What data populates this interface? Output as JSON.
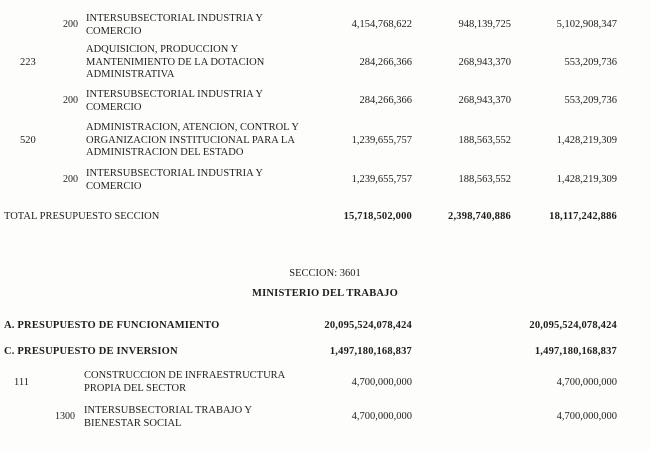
{
  "rows": [
    {
      "code": "",
      "sub": "200",
      "desc": [
        "INTERSUBSECTORIAL INDUSTRIA Y",
        "COMERCIO"
      ],
      "v1": "4,154,768,622",
      "v2": "948,139,725",
      "v3": "5,102,908,347"
    },
    {
      "code": "223",
      "sub": "",
      "desc": [
        "ADQUISICION, PRODUCCION Y",
        "MANTENIMIENTO DE LA DOTACION",
        "ADMINISTRATIVA"
      ],
      "v1": "284,266,366",
      "v2": "268,943,370",
      "v3": "553,209,736"
    },
    {
      "code": "",
      "sub": "200",
      "desc": [
        "INTERSUBSECTORIAL INDUSTRIA Y",
        "COMERCIO"
      ],
      "v1": "284,266,366",
      "v2": "268,943,370",
      "v3": "553,209,736"
    },
    {
      "code": "520",
      "sub": "",
      "desc": [
        "ADMINISTRACION, ATENCION, CONTROL Y",
        "ORGANIZACION INSTITUCIONAL PARA LA",
        "ADMINISTRACION DEL ESTADO"
      ],
      "v1": "1,239,655,757",
      "v2": "188,563,552",
      "v3": "1,428,219,309"
    },
    {
      "code": "",
      "sub": "200",
      "desc": [
        "INTERSUBSECTORIAL INDUSTRIA Y",
        "COMERCIO"
      ],
      "v1": "1,239,655,757",
      "v2": "188,563,552",
      "v3": "1,428,219,309"
    }
  ],
  "total": {
    "label": "TOTAL PRESUPUESTO SECCION",
    "v1": "15,718,502,000",
    "v2": "2,398,740,886",
    "v3": "18,117,242,886"
  },
  "section": {
    "code": "SECCION: 3601",
    "name": "MINISTERIO DEL TRABAJO"
  },
  "summary": [
    {
      "label": "A.  PRESUPUESTO DE FUNCIONAMIENTO",
      "v1": "20,095,524,078,424",
      "v3": "20,095,524,078,424"
    },
    {
      "label": "C.  PRESUPUESTO DE INVERSION",
      "v1": "1,497,180,168,837",
      "v3": "1,497,180,168,837"
    }
  ],
  "inv_rows": [
    {
      "code": "111",
      "sub": "",
      "desc": [
        "CONSTRUCCION DE INFRAESTRUCTURA",
        "PROPIA DEL SECTOR"
      ],
      "v1": "4,700,000,000",
      "v3": "4,700,000,000"
    },
    {
      "code": "",
      "sub": "1300",
      "desc": [
        "INTERSUBSECTORIAL TRABAJO Y",
        "BIENESTAR SOCIAL"
      ],
      "v1": "4,700,000,000",
      "v3": "4,700,000,000"
    }
  ]
}
